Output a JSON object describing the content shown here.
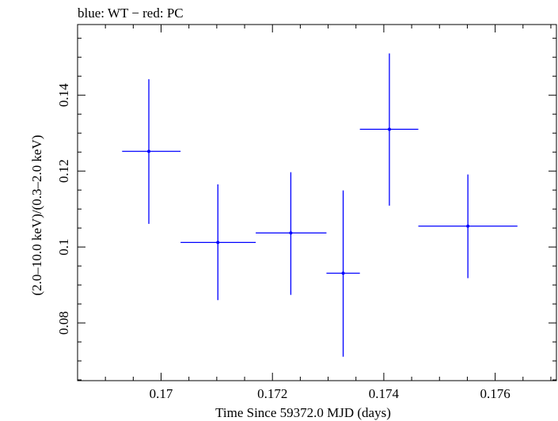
{
  "chart_data": {
    "type": "scatter",
    "title": "blue: WT − red: PC",
    "xlabel": "Time Since 59372.0 MJD (days)",
    "ylabel": "(2.0–10.0 keV)/(0.3–2.0 keV)",
    "xlim": [
      0.1685,
      0.1771
    ],
    "ylim": [
      0.0648,
      0.1586
    ],
    "x_ticks": [
      0.17,
      0.172,
      0.174,
      0.176
    ],
    "x_tick_labels": [
      "0.17",
      "0.172",
      "0.174",
      "0.176"
    ],
    "y_ticks": [
      0.08,
      0.1,
      0.12,
      0.14
    ],
    "y_tick_labels": [
      "0.08",
      "0.1",
      "0.12",
      "0.14"
    ],
    "grid": false,
    "series": [
      {
        "color": "#0000ff",
        "points": [
          {
            "x": 0.16978,
            "xerr_lo": 0.1693,
            "xerr_hi": 0.17035,
            "y": 0.1252,
            "yerr_lo": 0.1061,
            "yerr_hi": 0.1442
          },
          {
            "x": 0.17102,
            "xerr_lo": 0.17035,
            "xerr_hi": 0.1717,
            "y": 0.1012,
            "yerr_lo": 0.086,
            "yerr_hi": 0.1165
          },
          {
            "x": 0.17233,
            "xerr_lo": 0.1717,
            "xerr_hi": 0.17297,
            "y": 0.1037,
            "yerr_lo": 0.0874,
            "yerr_hi": 0.1197
          },
          {
            "x": 0.17327,
            "xerr_lo": 0.17297,
            "xerr_hi": 0.17357,
            "y": 0.0931,
            "yerr_lo": 0.0711,
            "yerr_hi": 0.1149
          },
          {
            "x": 0.1741,
            "xerr_lo": 0.17357,
            "xerr_hi": 0.17462,
            "y": 0.131,
            "yerr_lo": 0.1109,
            "yerr_hi": 0.151
          },
          {
            "x": 0.17551,
            "xerr_lo": 0.17462,
            "xerr_hi": 0.1764,
            "y": 0.1055,
            "yerr_lo": 0.0918,
            "yerr_hi": 0.1191
          }
        ]
      }
    ]
  }
}
